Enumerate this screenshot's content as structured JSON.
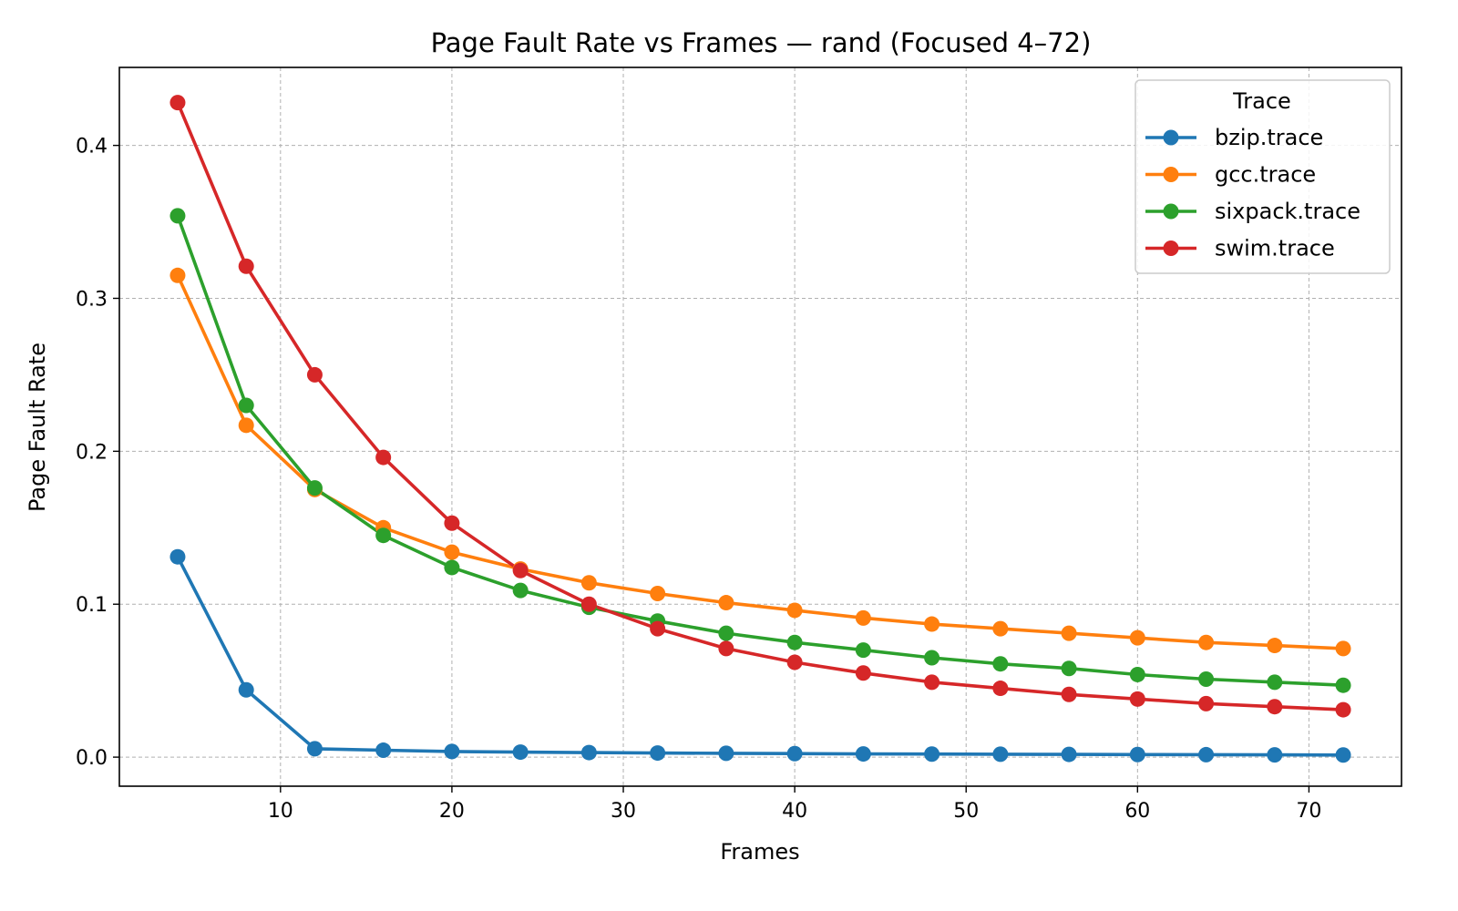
{
  "chart_data": {
    "type": "line",
    "title": "Page Fault Rate vs Frames — rand (Focused 4–72)",
    "xlabel": "Frames",
    "ylabel": "Page Fault Rate",
    "xlim": [
      0.6,
      75.4
    ],
    "ylim": [
      -0.019,
      0.451
    ],
    "xticks": [
      10,
      20,
      30,
      40,
      50,
      60,
      70
    ],
    "yticks": [
      0.0,
      0.1,
      0.2,
      0.3,
      0.4
    ],
    "xtick_labels": [
      "10",
      "20",
      "30",
      "40",
      "50",
      "60",
      "70"
    ],
    "ytick_labels": [
      "0.0",
      "0.1",
      "0.2",
      "0.3",
      "0.4"
    ],
    "grid": true,
    "legend": {
      "title": "Trace",
      "placement": "top-right"
    },
    "x": [
      4,
      8,
      12,
      16,
      20,
      24,
      28,
      32,
      36,
      40,
      44,
      48,
      52,
      56,
      60,
      64,
      68,
      72
    ],
    "series": [
      {
        "name": "bzip.trace",
        "color": "#1f77b4",
        "values": [
          0.131,
          0.044,
          0.0055,
          0.0045,
          0.0037,
          0.0033,
          0.003,
          0.0027,
          0.0025,
          0.0023,
          0.0021,
          0.002,
          0.0019,
          0.0018,
          0.0017,
          0.0016,
          0.0015,
          0.0014
        ]
      },
      {
        "name": "gcc.trace",
        "color": "#ff7f0e",
        "values": [
          0.315,
          0.217,
          0.175,
          0.15,
          0.134,
          0.123,
          0.114,
          0.107,
          0.101,
          0.096,
          0.091,
          0.087,
          0.084,
          0.081,
          0.078,
          0.075,
          0.073,
          0.071
        ]
      },
      {
        "name": "sixpack.trace",
        "color": "#2ca02c",
        "values": [
          0.354,
          0.23,
          0.176,
          0.145,
          0.124,
          0.109,
          0.098,
          0.089,
          0.081,
          0.075,
          0.07,
          0.065,
          0.061,
          0.058,
          0.054,
          0.051,
          0.049,
          0.047
        ]
      },
      {
        "name": "swim.trace",
        "color": "#d62728",
        "values": [
          0.428,
          0.321,
          0.25,
          0.196,
          0.153,
          0.122,
          0.1,
          0.084,
          0.071,
          0.062,
          0.055,
          0.049,
          0.045,
          0.041,
          0.038,
          0.035,
          0.033,
          0.031
        ]
      }
    ]
  }
}
